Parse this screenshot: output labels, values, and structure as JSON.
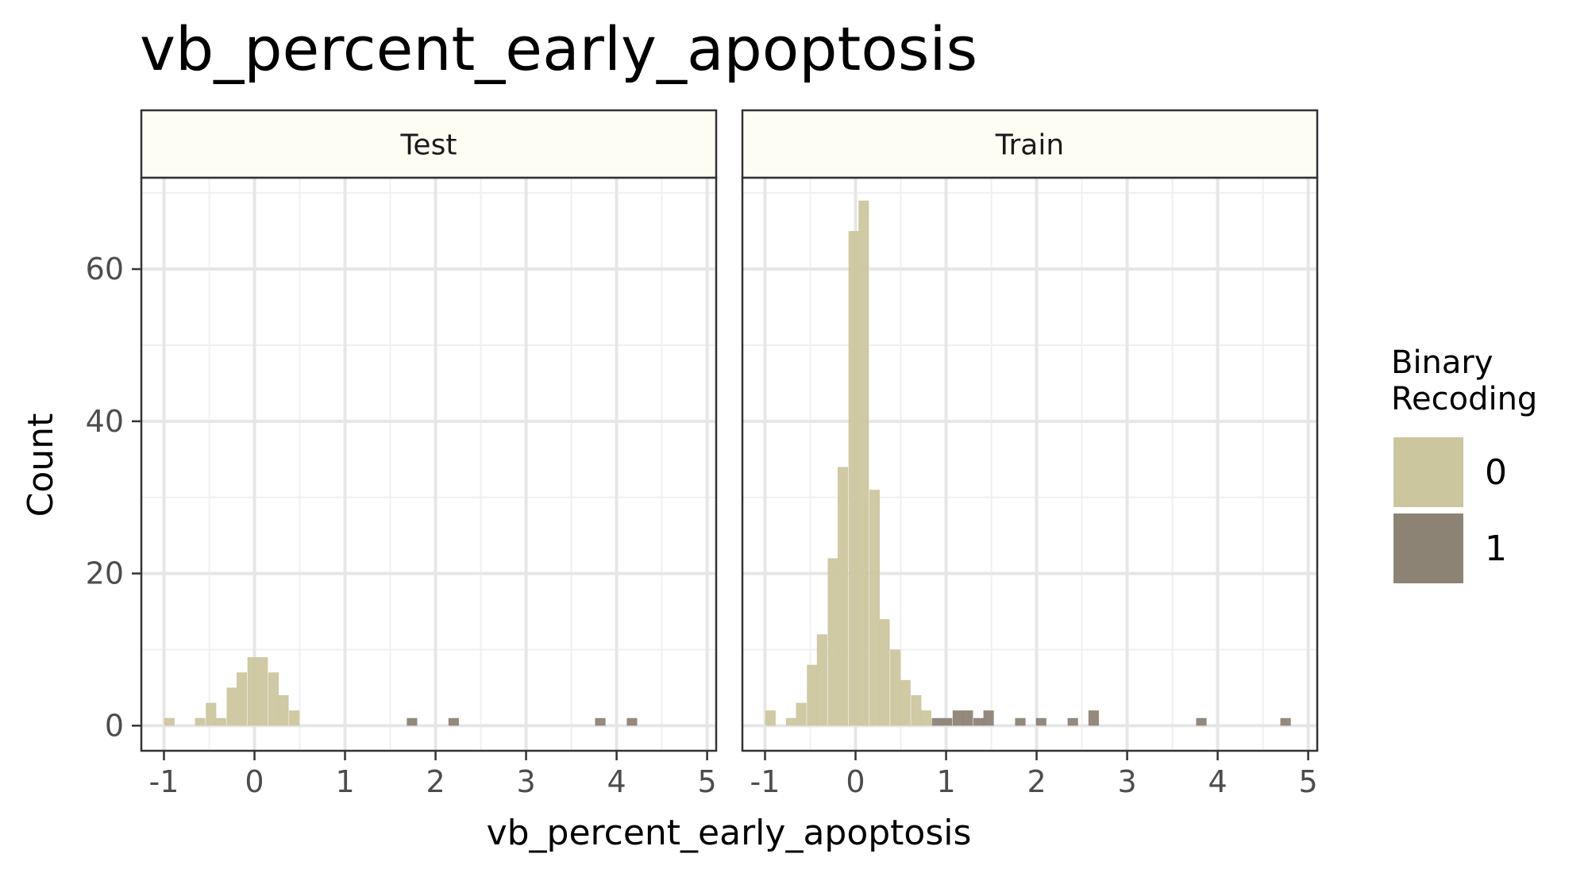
{
  "chart_data": {
    "type": "bar",
    "title": "vb_percent_early_apoptosis",
    "xlabel": "vb_percent_early_apoptosis",
    "ylabel": "Count",
    "xlim": [
      -1.25,
      5.1
    ],
    "ylim": [
      -3.3,
      72
    ],
    "xticks": [
      "-1",
      "0",
      "1",
      "2",
      "3",
      "4",
      "5"
    ],
    "xtick_values": [
      -1,
      0,
      1,
      2,
      3,
      4,
      5
    ],
    "yticks": [
      "0",
      "20",
      "40",
      "60"
    ],
    "ytick_values": [
      0,
      20,
      40,
      60
    ],
    "grid": true,
    "bin_width": 0.115,
    "legend": {
      "title_lines": [
        "Binary",
        "Recoding"
      ],
      "placement": "right",
      "items": [
        {
          "label": "0",
          "color": "#ccc69f"
        },
        {
          "label": "1",
          "color": "#8d8375"
        }
      ]
    },
    "panels": [
      {
        "name": "Test",
        "bars": [
          {
            "x": -0.94,
            "count": 1,
            "group": "0"
          },
          {
            "x": -0.6,
            "count": 1,
            "group": "0"
          },
          {
            "x": -0.48,
            "count": 3,
            "group": "0"
          },
          {
            "x": -0.37,
            "count": 1,
            "group": "0"
          },
          {
            "x": -0.25,
            "count": 5,
            "group": "0"
          },
          {
            "x": -0.14,
            "count": 7,
            "group": "0"
          },
          {
            "x": -0.02,
            "count": 9,
            "group": "0"
          },
          {
            "x": 0.09,
            "count": 9,
            "group": "0"
          },
          {
            "x": 0.21,
            "count": 7,
            "group": "0"
          },
          {
            "x": 0.32,
            "count": 4,
            "group": "0"
          },
          {
            "x": 0.44,
            "count": 2,
            "group": "0"
          },
          {
            "x": 1.74,
            "count": 1,
            "group": "1"
          },
          {
            "x": 2.2,
            "count": 1,
            "group": "1"
          },
          {
            "x": 3.82,
            "count": 1,
            "group": "1"
          },
          {
            "x": 4.17,
            "count": 1,
            "group": "1"
          }
        ]
      },
      {
        "name": "Train",
        "bars": [
          {
            "x": -0.94,
            "count": 2,
            "group": "0"
          },
          {
            "x": -0.71,
            "count": 1,
            "group": "0"
          },
          {
            "x": -0.6,
            "count": 3,
            "group": "0"
          },
          {
            "x": -0.48,
            "count": 8,
            "group": "0"
          },
          {
            "x": -0.37,
            "count": 12,
            "group": "0"
          },
          {
            "x": -0.25,
            "count": 22,
            "group": "0"
          },
          {
            "x": -0.14,
            "count": 34,
            "group": "0"
          },
          {
            "x": -0.02,
            "count": 65,
            "group": "0"
          },
          {
            "x": 0.09,
            "count": 69,
            "group": "0"
          },
          {
            "x": 0.21,
            "count": 31,
            "group": "0"
          },
          {
            "x": 0.32,
            "count": 14,
            "group": "0"
          },
          {
            "x": 0.44,
            "count": 10,
            "group": "0"
          },
          {
            "x": 0.55,
            "count": 6,
            "group": "0"
          },
          {
            "x": 0.67,
            "count": 4,
            "group": "0"
          },
          {
            "x": 0.78,
            "count": 2,
            "group": "0"
          },
          {
            "x": 0.9,
            "count": 1,
            "group": "1"
          },
          {
            "x": 1.01,
            "count": 1,
            "group": "1"
          },
          {
            "x": 1.13,
            "count": 2,
            "group": "1"
          },
          {
            "x": 1.24,
            "count": 2,
            "group": "1"
          },
          {
            "x": 1.36,
            "count": 1,
            "group": "1"
          },
          {
            "x": 1.47,
            "count": 2,
            "group": "1"
          },
          {
            "x": 1.82,
            "count": 1,
            "group": "1"
          },
          {
            "x": 2.05,
            "count": 1,
            "group": "1"
          },
          {
            "x": 2.4,
            "count": 1,
            "group": "1"
          },
          {
            "x": 2.63,
            "count": 2,
            "group": "1"
          },
          {
            "x": 3.82,
            "count": 1,
            "group": "1"
          },
          {
            "x": 4.75,
            "count": 1,
            "group": "1"
          }
        ]
      }
    ]
  }
}
